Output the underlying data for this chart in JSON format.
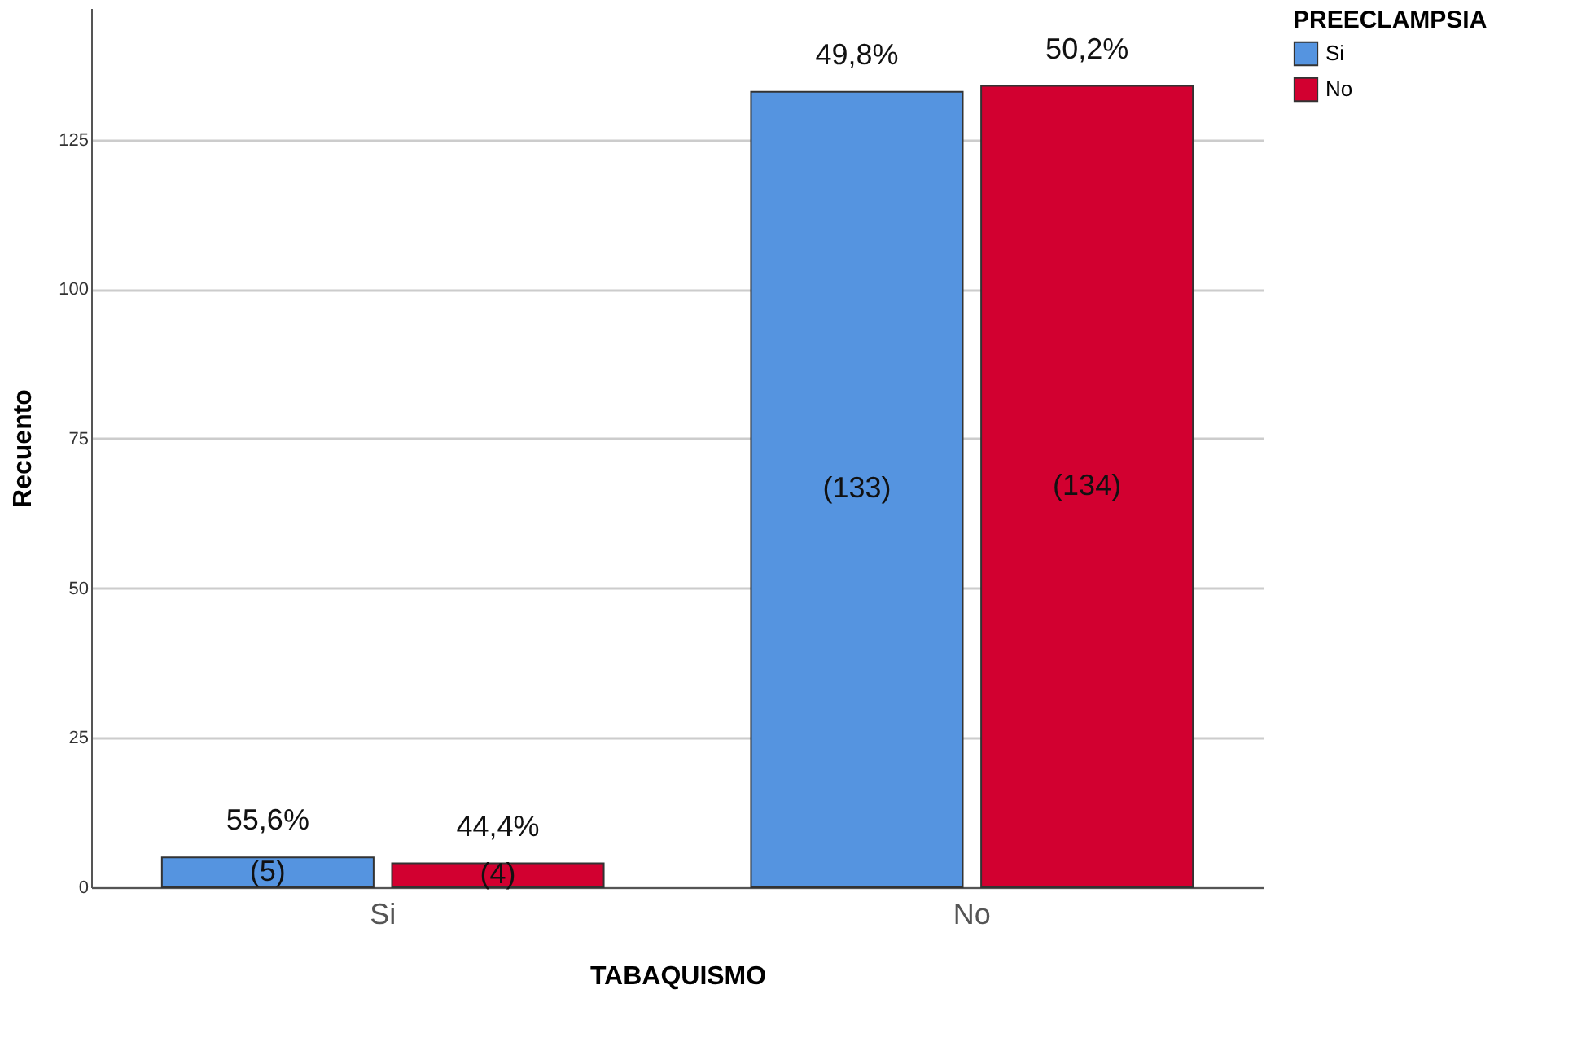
{
  "chart_data": {
    "type": "bar",
    "xlabel": "TABAQUISMO",
    "ylabel": "Recuento",
    "legend_title": "PREECLAMPSIA",
    "categories": [
      "Si",
      "No"
    ],
    "series": [
      {
        "name": "Si",
        "color": "#5594e0",
        "values": [
          5,
          133
        ],
        "value_labels": [
          "(5)",
          "(133)"
        ]
      },
      {
        "name": "No",
        "color": "#d20030",
        "values": [
          4,
          134
        ],
        "value_labels": [
          "(4)",
          "(134)"
        ]
      }
    ],
    "annotations": [
      "55,6%",
      "44,4%",
      "49,8%",
      "50,2%"
    ],
    "ylim": [
      0,
      147
    ],
    "yticks": [
      0,
      25,
      50,
      75,
      100,
      125
    ],
    "grid": "y",
    "legend": "top right"
  }
}
